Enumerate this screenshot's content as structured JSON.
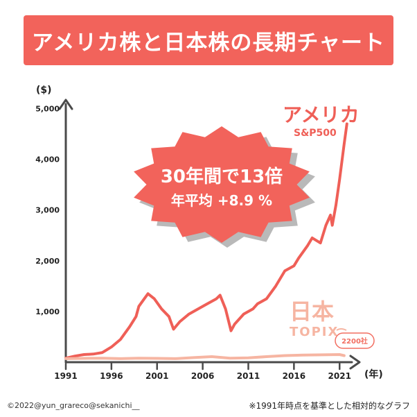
{
  "title": "アメリカ株と日本株の長期チャート",
  "colors": {
    "banner": "#f2635b",
    "us_line": "#ef5f57",
    "jp_line": "#f6b5a2",
    "axis": "#4a4a4a",
    "burst_fill": "#f2635b",
    "burst_shadow": "#b9b9b9",
    "jp_badge": "#f26e61"
  },
  "callout": {
    "line1": "30年間で13倍",
    "line2": "年平均 +8.9 %"
  },
  "labels": {
    "us_name": "アメリカ",
    "us_index": "S&P500",
    "jp_name": "日本",
    "jp_index": "TOPIX",
    "jp_badge": "2200社"
  },
  "credit": "©2022@yun_grareco@sekanichi__",
  "footnote": "※1991年時点を基準とした相対的なグラフ",
  "chart_data": {
    "type": "line",
    "ylabel": "($)",
    "xlabel": "(年)",
    "yticks": [
      "1,000",
      "2,000",
      "3,000",
      "4,000",
      "5,000"
    ],
    "ytick_values": [
      1000,
      2000,
      3000,
      4000,
      5000
    ],
    "xticks": [
      "1991",
      "1996",
      "2001",
      "2006",
      "2011",
      "2016",
      "2021"
    ],
    "xtick_values": [
      1991,
      1996,
      2001,
      2006,
      2011,
      2016,
      2021
    ],
    "xlim": [
      1991,
      2022.5
    ],
    "ylim": [
      0,
      5500
    ],
    "series": [
      {
        "name": "アメリカ S&P500",
        "x": [
          1991,
          1992,
          1993,
          1994,
          1995,
          1996,
          1997,
          1998,
          1998.7,
          1999,
          1999.6,
          2000,
          2000.7,
          2001.5,
          2002.3,
          2002.8,
          2003.5,
          2004.5,
          2005.5,
          2006.5,
          2007.5,
          2007.9,
          2008.5,
          2009.1,
          2009.5,
          2010.5,
          2011.5,
          2012,
          2013,
          2014,
          2015,
          2016,
          2016.5,
          2017.5,
          2018,
          2018.9,
          2019.5,
          2020,
          2020.2,
          2020.6,
          2021,
          2021.5,
          2021.8
        ],
        "y": [
          80,
          120,
          150,
          160,
          190,
          300,
          450,
          700,
          900,
          1100,
          1250,
          1350,
          1250,
          1050,
          900,
          650,
          800,
          950,
          1050,
          1150,
          1250,
          1320,
          1050,
          620,
          750,
          950,
          1050,
          1150,
          1250,
          1500,
          1800,
          1900,
          2050,
          2300,
          2450,
          2350,
          2700,
          2900,
          2700,
          3100,
          3600,
          4300,
          4700
        ]
      },
      {
        "name": "日本 TOPIX",
        "x": [
          1991,
          1993,
          1995,
          1997,
          1999,
          2001,
          2003,
          2005,
          2007,
          2009,
          2011,
          2013,
          2015,
          2017,
          2019,
          2021,
          2021.5
        ],
        "y": [
          70,
          75,
          80,
          70,
          80,
          75,
          70,
          90,
          110,
          80,
          85,
          110,
          130,
          140,
          145,
          150,
          130
        ]
      }
    ]
  }
}
